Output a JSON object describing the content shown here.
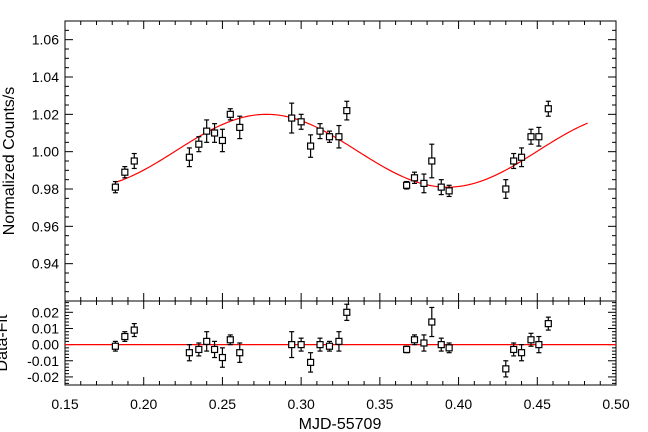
{
  "chart_data": {
    "type": "scatter",
    "xlabel": "MJD-55709",
    "xlim": [
      0.15,
      0.5
    ],
    "xticks": [
      "0.15",
      "0.20",
      "0.25",
      "0.30",
      "0.35",
      "0.40",
      "0.45",
      "0.50"
    ],
    "xtick_values": [
      0.15,
      0.2,
      0.25,
      0.3,
      0.35,
      0.4,
      0.45,
      0.5
    ],
    "top_panel": {
      "ylabel": "Normalized Counts/s",
      "ylim": [
        0.92,
        1.07
      ],
      "yticks": [
        "0.94",
        "0.96",
        "0.98",
        "1.00",
        "1.02",
        "1.04",
        "1.06"
      ],
      "ytick_values": [
        0.94,
        0.96,
        0.98,
        1.0,
        1.02,
        1.04,
        1.06
      ],
      "points": [
        {
          "x": 0.182,
          "y": 0.981,
          "err": 0.003
        },
        {
          "x": 0.188,
          "y": 0.989,
          "err": 0.003
        },
        {
          "x": 0.194,
          "y": 0.995,
          "err": 0.004
        },
        {
          "x": 0.229,
          "y": 0.997,
          "err": 0.005
        },
        {
          "x": 0.235,
          "y": 1.004,
          "err": 0.004
        },
        {
          "x": 0.24,
          "y": 1.011,
          "err": 0.006
        },
        {
          "x": 0.245,
          "y": 1.01,
          "err": 0.005
        },
        {
          "x": 0.25,
          "y": 1.006,
          "err": 0.006
        },
        {
          "x": 0.255,
          "y": 1.02,
          "err": 0.003
        },
        {
          "x": 0.261,
          "y": 1.013,
          "err": 0.006
        },
        {
          "x": 0.294,
          "y": 1.018,
          "err": 0.008
        },
        {
          "x": 0.3,
          "y": 1.016,
          "err": 0.004
        },
        {
          "x": 0.306,
          "y": 1.003,
          "err": 0.006
        },
        {
          "x": 0.312,
          "y": 1.011,
          "err": 0.004
        },
        {
          "x": 0.318,
          "y": 1.008,
          "err": 0.003
        },
        {
          "x": 0.324,
          "y": 1.008,
          "err": 0.006
        },
        {
          "x": 0.329,
          "y": 1.022,
          "err": 0.005
        },
        {
          "x": 0.367,
          "y": 0.982,
          "err": 0.002
        },
        {
          "x": 0.372,
          "y": 0.986,
          "err": 0.003
        },
        {
          "x": 0.378,
          "y": 0.983,
          "err": 0.005
        },
        {
          "x": 0.383,
          "y": 0.995,
          "err": 0.009
        },
        {
          "x": 0.389,
          "y": 0.981,
          "err": 0.004
        },
        {
          "x": 0.394,
          "y": 0.979,
          "err": 0.003
        },
        {
          "x": 0.43,
          "y": 0.98,
          "err": 0.005
        },
        {
          "x": 0.435,
          "y": 0.995,
          "err": 0.004
        },
        {
          "x": 0.44,
          "y": 0.997,
          "err": 0.005
        },
        {
          "x": 0.446,
          "y": 1.008,
          "err": 0.004
        },
        {
          "x": 0.451,
          "y": 1.008,
          "err": 0.005
        },
        {
          "x": 0.457,
          "y": 1.023,
          "err": 0.004
        }
      ],
      "fit": {
        "type": "sinusoid",
        "mean": 1.0005,
        "amplitude": 0.0195,
        "period": 0.23,
        "peak_x": 0.278,
        "x_range": [
          0.182,
          0.482
        ],
        "color": "#ff0000"
      }
    },
    "bottom_panel": {
      "ylabel": "Data-Fit",
      "ylim": [
        -0.025,
        0.027
      ],
      "yticks": [
        "-0.02",
        "-0.01",
        "0.00",
        "0.01",
        "0.02"
      ],
      "ytick_values": [
        -0.02,
        -0.01,
        0.0,
        0.01,
        0.02
      ],
      "points": [
        {
          "x": 0.182,
          "y": -0.001,
          "err": 0.003
        },
        {
          "x": 0.188,
          "y": 0.005,
          "err": 0.003
        },
        {
          "x": 0.194,
          "y": 0.009,
          "err": 0.004
        },
        {
          "x": 0.229,
          "y": -0.005,
          "err": 0.005
        },
        {
          "x": 0.235,
          "y": -0.003,
          "err": 0.004
        },
        {
          "x": 0.24,
          "y": 0.002,
          "err": 0.006
        },
        {
          "x": 0.245,
          "y": -0.003,
          "err": 0.005
        },
        {
          "x": 0.25,
          "y": -0.008,
          "err": 0.006
        },
        {
          "x": 0.255,
          "y": 0.003,
          "err": 0.003
        },
        {
          "x": 0.261,
          "y": -0.005,
          "err": 0.006
        },
        {
          "x": 0.294,
          "y": 0.0,
          "err": 0.008
        },
        {
          "x": 0.3,
          "y": 0.0,
          "err": 0.004
        },
        {
          "x": 0.306,
          "y": -0.011,
          "err": 0.006
        },
        {
          "x": 0.312,
          "y": 0.0,
          "err": 0.004
        },
        {
          "x": 0.318,
          "y": -0.001,
          "err": 0.003
        },
        {
          "x": 0.324,
          "y": 0.002,
          "err": 0.006
        },
        {
          "x": 0.329,
          "y": 0.02,
          "err": 0.005
        },
        {
          "x": 0.367,
          "y": -0.003,
          "err": 0.002
        },
        {
          "x": 0.372,
          "y": 0.003,
          "err": 0.003
        },
        {
          "x": 0.378,
          "y": 0.001,
          "err": 0.005
        },
        {
          "x": 0.383,
          "y": 0.014,
          "err": 0.009
        },
        {
          "x": 0.389,
          "y": 0.0,
          "err": 0.004
        },
        {
          "x": 0.394,
          "y": -0.002,
          "err": 0.003
        },
        {
          "x": 0.43,
          "y": -0.015,
          "err": 0.005
        },
        {
          "x": 0.435,
          "y": -0.003,
          "err": 0.004
        },
        {
          "x": 0.44,
          "y": -0.005,
          "err": 0.005
        },
        {
          "x": 0.446,
          "y": 0.003,
          "err": 0.004
        },
        {
          "x": 0.451,
          "y": 0.0,
          "err": 0.005
        },
        {
          "x": 0.457,
          "y": 0.013,
          "err": 0.004
        }
      ],
      "zero_line": {
        "y": 0.0,
        "color": "#ff0000"
      }
    }
  }
}
